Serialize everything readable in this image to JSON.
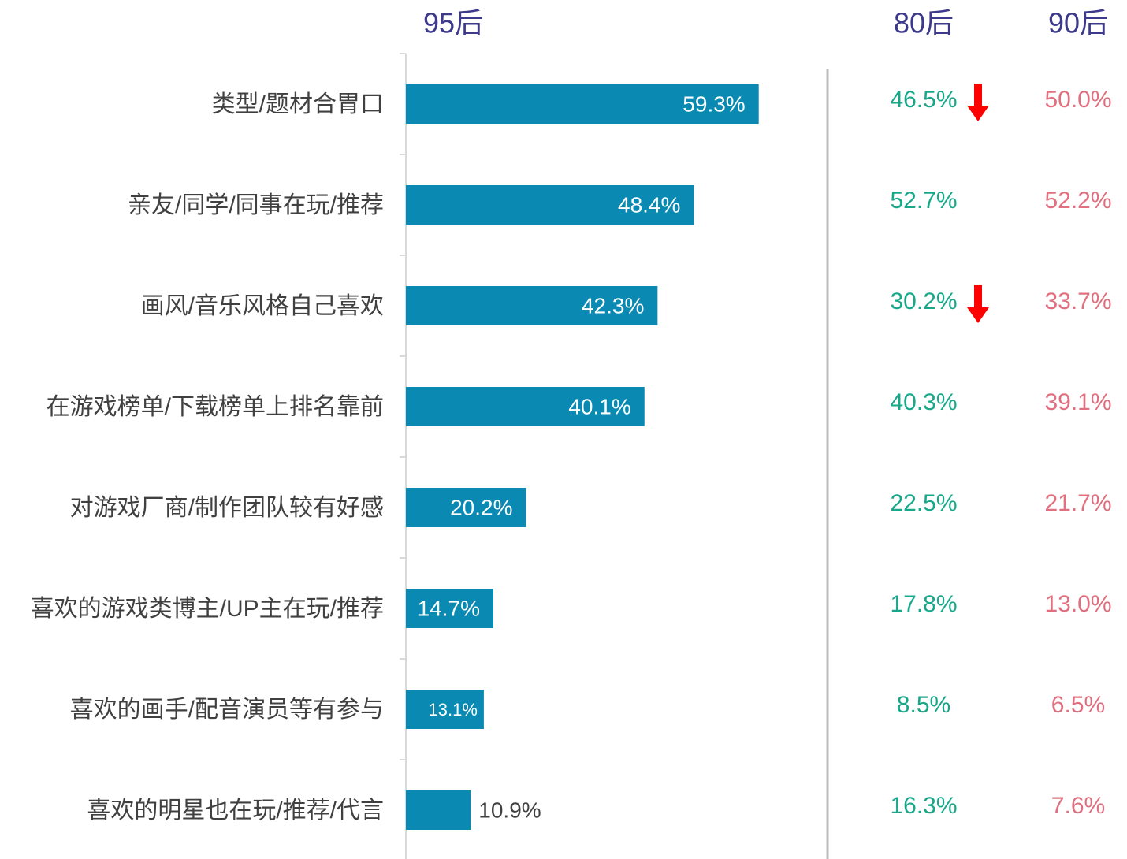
{
  "chart_data": {
    "type": "bar",
    "orientation": "horizontal",
    "categories": [
      "类型/题材合胃口",
      "亲友/同学/同事在玩/推荐",
      "画风/音乐风格自己喜欢",
      "在游戏榜单/下载榜单上排名靠前",
      "对游戏厂商/制作团队较有好感",
      "喜欢的游戏类博主/UP主在玩/推荐",
      "喜欢的画手/配音演员等有参与",
      "喜欢的明星也在玩/推荐/代言"
    ],
    "series": [
      {
        "name": "95后",
        "color": "#0a8ab2",
        "values": [
          59.3,
          48.4,
          42.3,
          40.1,
          20.2,
          14.7,
          13.1,
          10.9
        ],
        "value_labels": [
          "59.3%",
          "48.4%",
          "42.3%",
          "40.1%",
          "20.2%",
          "14.7%",
          "13.1%",
          "10.9%"
        ]
      }
    ],
    "xlim": [
      0,
      100
    ]
  },
  "comparison": {
    "columns": [
      {
        "name": "80后",
        "color": "#17a88a",
        "values": [
          "46.5%",
          "52.7%",
          "30.2%",
          "40.3%",
          "22.5%",
          "17.8%",
          "8.5%",
          "16.3%"
        ]
      },
      {
        "name": "90后",
        "color": "#e0707f",
        "values": [
          "50.0%",
          "52.2%",
          "33.7%",
          "39.1%",
          "21.7%",
          "13.0%",
          "6.5%",
          "7.6%"
        ]
      }
    ]
  }
}
